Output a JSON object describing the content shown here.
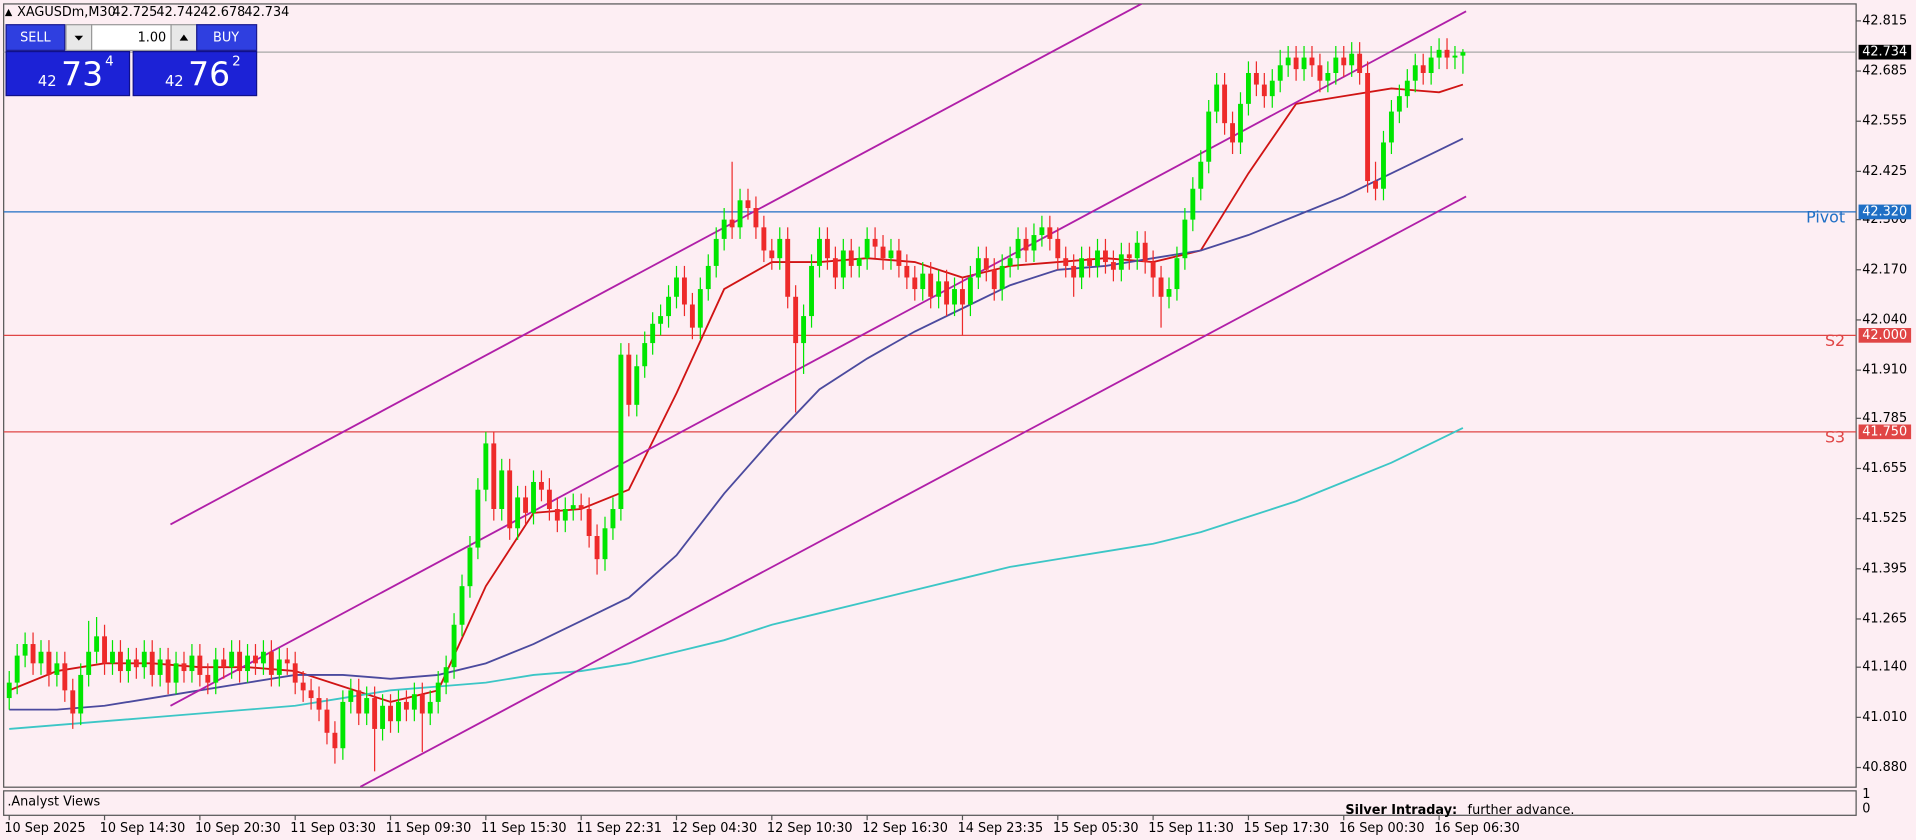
{
  "chart_data": {
    "type": "candlestick",
    "symbol": "XAGUSDm,M30",
    "up_color": "#00e600",
    "down_color": "#ee2a2a",
    "xlim": [
      -0.7,
      232.5
    ],
    "ylim": [
      40.829,
      42.859
    ],
    "xticks": [
      {
        "value": 0,
        "label": "10 Sep 2025"
      },
      {
        "value": 12,
        "label": "10 Sep 14:30"
      },
      {
        "value": 24,
        "label": "10 Sep 20:30"
      },
      {
        "value": 36,
        "label": "11 Sep 03:30"
      },
      {
        "value": 48,
        "label": "11 Sep 09:30"
      },
      {
        "value": 60,
        "label": "11 Sep 15:30"
      },
      {
        "value": 72,
        "label": "11 Sep 22:31"
      },
      {
        "value": 84,
        "label": "12 Sep 04:30"
      },
      {
        "value": 96,
        "label": "12 Sep 10:30"
      },
      {
        "value": 108,
        "label": "12 Sep 16:30"
      },
      {
        "value": 120,
        "label": "14 Sep 23:35"
      },
      {
        "value": 132,
        "label": "15 Sep 05:30"
      },
      {
        "value": 144,
        "label": "15 Sep 11:30"
      },
      {
        "value": 156,
        "label": "15 Sep 17:30"
      },
      {
        "value": 168,
        "label": "16 Sep 00:30"
      },
      {
        "value": 180,
        "label": "16 Sep 06:30"
      }
    ],
    "yticks": [
      {
        "value": 40.88,
        "label": "40.880"
      },
      {
        "value": 41.01,
        "label": "41.010"
      },
      {
        "value": 41.14,
        "label": "41.140"
      },
      41.265,
      41.395,
      41.525,
      41.655,
      41.785,
      {
        "value": 41.91,
        "label": "41.910"
      },
      {
        "value": 42.04,
        "label": "42.040"
      },
      {
        "value": 42.17,
        "label": "42.170"
      },
      {
        "value": 42.3,
        "label": "42.300"
      },
      42.425,
      42.555,
      42.685,
      42.815
    ],
    "ohlc": [
      [
        41.06,
        41.13,
        41.03,
        41.1
      ],
      [
        41.1,
        41.2,
        41.07,
        41.17
      ],
      [
        41.17,
        41.23,
        41.14,
        41.2
      ],
      [
        41.2,
        41.23,
        41.12,
        41.15
      ],
      [
        41.15,
        41.21,
        41.12,
        41.18
      ],
      [
        41.18,
        41.21,
        41.09,
        41.12
      ],
      [
        41.12,
        41.18,
        41.09,
        41.15
      ],
      [
        41.15,
        41.18,
        41.05,
        41.08
      ],
      [
        41.08,
        41.11,
        40.98,
        41.02
      ],
      [
        41.02,
        41.15,
        40.99,
        41.12
      ],
      [
        41.12,
        41.26,
        41.09,
        41.18
      ],
      [
        41.18,
        41.27,
        41.15,
        41.22
      ],
      [
        41.22,
        41.25,
        41.12,
        41.15
      ],
      [
        41.15,
        41.21,
        41.12,
        41.18
      ],
      [
        41.18,
        41.21,
        41.1,
        41.13
      ],
      [
        41.13,
        41.19,
        41.1,
        41.16
      ],
      [
        41.16,
        41.19,
        41.11,
        41.14
      ],
      [
        41.14,
        41.21,
        41.11,
        41.18
      ],
      [
        41.18,
        41.21,
        41.09,
        41.12
      ],
      [
        41.12,
        41.19,
        41.09,
        41.16
      ],
      [
        41.16,
        41.19,
        41.07,
        41.1
      ],
      [
        41.1,
        41.18,
        41.07,
        41.15
      ],
      [
        41.15,
        41.18,
        41.1,
        41.13
      ],
      [
        41.13,
        41.2,
        41.1,
        41.17
      ],
      [
        41.17,
        41.2,
        41.09,
        41.12
      ],
      [
        41.12,
        41.15,
        41.07,
        41.1
      ],
      [
        41.1,
        41.19,
        41.07,
        41.16
      ],
      [
        41.16,
        41.19,
        41.11,
        41.14
      ],
      [
        41.14,
        41.21,
        41.11,
        41.18
      ],
      [
        41.18,
        41.21,
        41.1,
        41.13
      ],
      [
        41.13,
        41.2,
        41.1,
        41.17
      ],
      [
        41.17,
        41.2,
        41.12,
        41.15
      ],
      [
        41.15,
        41.21,
        41.12,
        41.18
      ],
      [
        41.18,
        41.21,
        41.09,
        41.12
      ],
      [
        41.12,
        41.19,
        41.09,
        41.16
      ],
      [
        41.16,
        41.19,
        41.12,
        41.15
      ],
      [
        41.15,
        41.18,
        41.07,
        41.1
      ],
      [
        41.1,
        41.13,
        41.05,
        41.08
      ],
      [
        41.08,
        41.11,
        41.03,
        41.06
      ],
      [
        41.06,
        41.09,
        41.0,
        41.03
      ],
      [
        41.03,
        41.06,
        40.94,
        40.97
      ],
      [
        40.97,
        41.0,
        40.89,
        40.93
      ],
      [
        40.93,
        41.08,
        40.9,
        41.05
      ],
      [
        41.05,
        41.11,
        41.02,
        41.08
      ],
      [
        41.08,
        41.11,
        40.99,
        41.02
      ],
      [
        41.02,
        41.09,
        40.99,
        41.06
      ],
      [
        41.06,
        41.09,
        40.87,
        40.98
      ],
      [
        40.98,
        41.07,
        40.95,
        41.04
      ],
      [
        41.04,
        41.07,
        40.97,
        41.0
      ],
      [
        41.0,
        41.08,
        40.97,
        41.05
      ],
      [
        41.05,
        41.08,
        41.0,
        41.03
      ],
      [
        41.03,
        41.1,
        41.0,
        41.07
      ],
      [
        41.07,
        41.1,
        40.92,
        41.02
      ],
      [
        41.02,
        41.08,
        40.99,
        41.05
      ],
      [
        41.05,
        41.13,
        41.02,
        41.1
      ],
      [
        41.1,
        41.17,
        41.07,
        41.14
      ],
      [
        41.14,
        41.28,
        41.11,
        41.25
      ],
      [
        41.25,
        41.38,
        41.22,
        41.35
      ],
      [
        41.35,
        41.48,
        41.32,
        41.45
      ],
      [
        41.45,
        41.63,
        41.42,
        41.6
      ],
      [
        41.6,
        41.75,
        41.57,
        41.72
      ],
      [
        41.72,
        41.75,
        41.52,
        41.55
      ],
      [
        41.55,
        41.68,
        41.52,
        41.65
      ],
      [
        41.65,
        41.68,
        41.47,
        41.5
      ],
      [
        41.5,
        41.61,
        41.47,
        41.58
      ],
      [
        41.58,
        41.61,
        41.51,
        41.54
      ],
      [
        41.54,
        41.65,
        41.51,
        41.62
      ],
      [
        41.62,
        41.65,
        41.57,
        41.6
      ],
      [
        41.6,
        41.63,
        41.52,
        41.55
      ],
      [
        41.55,
        41.58,
        41.49,
        41.52
      ],
      [
        41.52,
        41.58,
        41.49,
        41.55
      ],
      [
        41.55,
        41.59,
        41.52,
        41.56
      ],
      [
        41.56,
        41.59,
        41.52,
        41.55
      ],
      [
        41.55,
        41.58,
        41.45,
        41.48
      ],
      [
        41.48,
        41.51,
        41.38,
        41.42
      ],
      [
        41.42,
        41.53,
        41.39,
        41.5
      ],
      [
        41.5,
        41.58,
        41.47,
        41.55
      ],
      [
        41.55,
        41.98,
        41.52,
        41.95
      ],
      [
        41.95,
        41.98,
        41.79,
        41.82
      ],
      [
        41.82,
        41.95,
        41.79,
        41.92
      ],
      [
        41.92,
        42.01,
        41.89,
        41.98
      ],
      [
        41.98,
        42.06,
        41.95,
        42.03
      ],
      [
        42.03,
        42.08,
        42.0,
        42.05
      ],
      [
        42.05,
        42.13,
        42.02,
        42.1
      ],
      [
        42.1,
        42.18,
        42.07,
        42.15
      ],
      [
        42.15,
        42.18,
        42.05,
        42.08
      ],
      [
        42.08,
        42.11,
        41.99,
        42.02
      ],
      [
        42.02,
        42.15,
        41.99,
        42.12
      ],
      [
        42.12,
        42.21,
        42.09,
        42.18
      ],
      [
        42.18,
        42.28,
        42.15,
        42.25
      ],
      [
        42.25,
        42.33,
        42.22,
        42.3
      ],
      [
        42.3,
        42.45,
        42.25,
        42.28
      ],
      [
        42.28,
        42.38,
        42.25,
        42.35
      ],
      [
        42.35,
        42.38,
        42.3,
        42.33
      ],
      [
        42.33,
        42.36,
        42.25,
        42.28
      ],
      [
        42.28,
        42.31,
        42.19,
        42.22
      ],
      [
        42.22,
        42.25,
        42.17,
        42.2
      ],
      [
        42.2,
        42.28,
        42.17,
        42.25
      ],
      [
        42.25,
        42.28,
        42.07,
        42.1
      ],
      [
        42.1,
        42.13,
        41.8,
        41.98
      ],
      [
        41.98,
        42.08,
        41.9,
        42.05
      ],
      [
        42.05,
        42.21,
        42.02,
        42.18
      ],
      [
        42.18,
        42.28,
        42.15,
        42.25
      ],
      [
        42.25,
        42.28,
        42.17,
        42.2
      ],
      [
        42.2,
        42.23,
        42.12,
        42.15
      ],
      [
        42.15,
        42.25,
        42.12,
        42.22
      ],
      [
        42.22,
        42.25,
        42.15,
        42.18
      ],
      [
        42.18,
        42.23,
        42.15,
        42.2
      ],
      [
        42.2,
        42.28,
        42.17,
        42.25
      ],
      [
        42.25,
        42.28,
        42.2,
        42.23
      ],
      [
        42.23,
        42.26,
        42.17,
        42.2
      ],
      [
        42.2,
        42.25,
        42.17,
        42.22
      ],
      [
        42.22,
        42.25,
        42.15,
        42.18
      ],
      [
        42.18,
        42.21,
        42.12,
        42.15
      ],
      [
        42.15,
        42.18,
        42.09,
        42.12
      ],
      [
        42.12,
        42.19,
        42.09,
        42.16
      ],
      [
        42.16,
        42.19,
        42.07,
        42.1
      ],
      [
        42.1,
        42.17,
        42.07,
        42.14
      ],
      [
        42.14,
        42.17,
        42.05,
        42.08
      ],
      [
        42.08,
        42.15,
        42.05,
        42.12
      ],
      [
        42.12,
        42.15,
        42.0,
        42.08
      ],
      [
        42.08,
        42.18,
        42.05,
        42.15
      ],
      [
        42.15,
        42.23,
        42.12,
        42.2
      ],
      [
        42.2,
        42.23,
        42.14,
        42.17
      ],
      [
        42.17,
        42.2,
        42.09,
        42.12
      ],
      [
        42.12,
        42.21,
        42.09,
        42.18
      ],
      [
        42.18,
        42.23,
        42.15,
        42.2
      ],
      [
        42.2,
        42.28,
        42.17,
        42.25
      ],
      [
        42.25,
        42.28,
        42.19,
        42.22
      ],
      [
        42.22,
        42.29,
        42.19,
        42.26
      ],
      [
        42.26,
        42.31,
        42.23,
        42.28
      ],
      [
        42.28,
        42.31,
        42.22,
        42.25
      ],
      [
        42.25,
        42.28,
        42.17,
        42.2
      ],
      [
        42.2,
        42.23,
        42.15,
        42.18
      ],
      [
        42.18,
        42.21,
        42.1,
        42.15
      ],
      [
        42.15,
        42.23,
        42.12,
        42.2
      ],
      [
        42.2,
        42.23,
        42.15,
        42.18
      ],
      [
        42.18,
        42.25,
        42.15,
        42.22
      ],
      [
        42.22,
        42.25,
        42.16,
        42.19
      ],
      [
        42.19,
        42.22,
        42.14,
        42.17
      ],
      [
        42.17,
        42.24,
        42.14,
        42.21
      ],
      [
        42.21,
        42.24,
        42.17,
        42.2
      ],
      [
        42.2,
        42.27,
        42.17,
        42.24
      ],
      [
        42.24,
        42.27,
        42.16,
        42.19
      ],
      [
        42.19,
        42.22,
        42.1,
        42.15
      ],
      [
        42.15,
        42.18,
        42.02,
        42.1
      ],
      [
        42.1,
        42.15,
        42.07,
        42.12
      ],
      [
        42.12,
        42.23,
        42.09,
        42.2
      ],
      [
        42.2,
        42.33,
        42.17,
        42.3
      ],
      [
        42.3,
        42.41,
        42.27,
        42.38
      ],
      [
        42.38,
        42.48,
        42.35,
        42.45
      ],
      [
        42.45,
        42.61,
        42.42,
        42.58
      ],
      [
        42.58,
        42.68,
        42.55,
        42.65
      ],
      [
        42.65,
        42.68,
        42.52,
        42.55
      ],
      [
        42.55,
        42.58,
        42.47,
        42.5
      ],
      [
        42.5,
        42.63,
        42.47,
        42.6
      ],
      [
        42.6,
        42.71,
        42.57,
        42.68
      ],
      [
        42.68,
        42.71,
        42.62,
        42.65
      ],
      [
        42.65,
        42.68,
        42.59,
        42.62
      ],
      [
        42.62,
        42.69,
        42.59,
        42.66
      ],
      [
        42.66,
        42.74,
        42.63,
        42.7
      ],
      [
        42.7,
        42.75,
        42.67,
        42.72
      ],
      [
        42.72,
        42.75,
        42.66,
        42.69
      ],
      [
        42.69,
        42.75,
        42.66,
        42.72
      ],
      [
        42.72,
        42.75,
        42.67,
        42.7
      ],
      [
        42.7,
        42.73,
        42.63,
        42.66
      ],
      [
        42.66,
        42.71,
        42.63,
        42.68
      ],
      [
        42.68,
        42.75,
        42.65,
        42.72
      ],
      [
        42.72,
        42.75,
        42.67,
        42.7
      ],
      [
        42.7,
        42.76,
        42.67,
        42.73
      ],
      [
        42.73,
        42.76,
        42.65,
        42.68
      ],
      [
        42.68,
        42.71,
        42.37,
        42.4
      ],
      [
        42.4,
        42.45,
        42.35,
        42.38
      ],
      [
        42.38,
        42.53,
        42.35,
        42.5
      ],
      [
        42.5,
        42.61,
        42.47,
        42.58
      ],
      [
        42.58,
        42.65,
        42.55,
        42.62
      ],
      [
        42.62,
        42.69,
        42.59,
        42.66
      ],
      [
        42.66,
        42.73,
        42.63,
        42.7
      ],
      [
        42.7,
        42.73,
        42.65,
        42.68
      ],
      [
        42.68,
        42.75,
        42.65,
        42.72
      ],
      [
        42.72,
        42.77,
        42.69,
        42.74
      ],
      [
        42.74,
        42.77,
        42.69,
        42.72
      ],
      [
        42.72,
        42.75,
        42.69,
        42.725
      ],
      [
        42.725,
        42.742,
        42.678,
        42.734
      ]
    ],
    "ma_x": [
      0,
      6,
      12,
      18,
      24,
      30,
      36,
      42,
      48,
      54,
      60,
      66,
      72,
      78,
      84,
      90,
      96,
      102,
      108,
      114,
      120,
      126,
      132,
      138,
      144,
      150,
      156,
      162,
      168,
      174,
      180,
      183
    ],
    "moving_averages": [
      {
        "color": "#d01414",
        "values": [
          41.08,
          41.13,
          41.15,
          41.15,
          41.14,
          41.14,
          41.13,
          41.09,
          41.05,
          41.08,
          41.35,
          41.54,
          41.55,
          41.6,
          41.85,
          42.12,
          42.19,
          42.19,
          42.2,
          42.19,
          42.15,
          42.18,
          42.19,
          42.2,
          42.19,
          42.22,
          42.42,
          42.6,
          42.62,
          42.64,
          42.63,
          42.65
        ]
      },
      {
        "color": "#4b4a9e",
        "values": [
          41.03,
          41.03,
          41.04,
          41.06,
          41.08,
          41.1,
          41.12,
          41.12,
          41.11,
          41.12,
          41.15,
          41.2,
          41.26,
          41.32,
          41.43,
          41.59,
          41.73,
          41.86,
          41.94,
          42.01,
          42.07,
          42.13,
          42.17,
          42.18,
          42.2,
          42.22,
          42.26,
          42.31,
          42.36,
          42.42,
          42.48,
          42.51
        ]
      },
      {
        "color": "#3cc6c6",
        "values": [
          40.98,
          40.99,
          41.0,
          41.01,
          41.02,
          41.03,
          41.04,
          41.06,
          41.08,
          41.09,
          41.1,
          41.12,
          41.13,
          41.15,
          41.18,
          41.21,
          41.25,
          41.28,
          41.31,
          41.34,
          41.37,
          41.4,
          41.42,
          41.44,
          41.46,
          41.49,
          41.53,
          41.57,
          41.62,
          41.67,
          41.73,
          41.76
        ]
      }
    ],
    "trendline_color": "#b01fa8",
    "trendlines": [
      {
        "x": [
          20.3,
          142.6
        ],
        "y": [
          41.51,
          42.86
        ]
      },
      {
        "x": [
          20.3,
          183.4
        ],
        "y": [
          41.04,
          42.84
        ]
      },
      {
        "x": [
          44.2,
          183.4
        ],
        "y": [
          40.83,
          42.36
        ]
      }
    ],
    "levels": [
      {
        "name": "Pivot",
        "value": 42.32,
        "label": "42.320",
        "color": "#1f6fc5"
      },
      {
        "name": "S2",
        "value": 42.0,
        "label": "42.000",
        "color": "#e04545"
      },
      {
        "name": "S3",
        "value": 41.75,
        "label": "41.750",
        "color": "#e04545"
      }
    ],
    "current_price": {
      "value": 42.734,
      "color": "#a8a8a8"
    },
    "indicator_window": {
      "title": ".Analyst Views",
      "yticks": [
        1,
        0
      ]
    },
    "analyst_note": {
      "label": "Silver Intraday:",
      "text": "further advance."
    }
  },
  "trade_panel": {
    "sell": "SELL",
    "buy": "BUY",
    "lot": "1.00",
    "bid": {
      "big": "42",
      "main": "73",
      "small": "4"
    },
    "ask": {
      "big": "42",
      "main": "76",
      "small": "2"
    }
  }
}
